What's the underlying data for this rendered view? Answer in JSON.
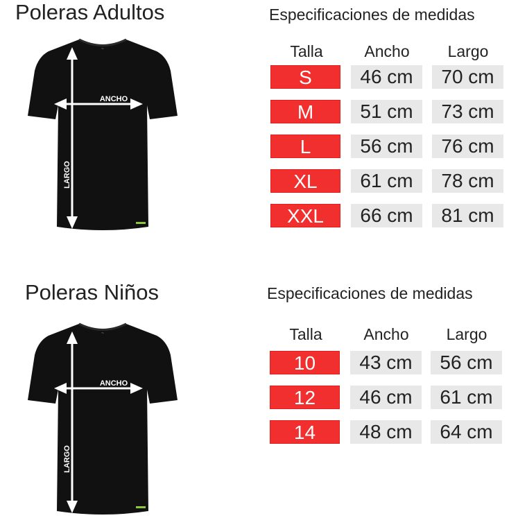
{
  "colors": {
    "size_bg": "#f22f2f",
    "value_bg": "#e8e8e8",
    "shirt": "#111111",
    "arrow": "#ffffff",
    "logo": "#8dc63f"
  },
  "adults": {
    "title": "Poleras  Adultos",
    "spec_title": "Especificaciones de medidas",
    "headers": [
      "Talla",
      "Ancho",
      "Largo"
    ],
    "shirt_labels": {
      "ancho": "ANCHO",
      "largo": "LARGO"
    },
    "rows": [
      {
        "talla": "S",
        "ancho": "46 cm",
        "largo": "70 cm"
      },
      {
        "talla": "M",
        "ancho": "51 cm",
        "largo": "73 cm"
      },
      {
        "talla": "L",
        "ancho": "56 cm",
        "largo": "76 cm"
      },
      {
        "talla": "XL",
        "ancho": "61 cm",
        "largo": "78 cm"
      },
      {
        "talla": "XXL",
        "ancho": "66 cm",
        "largo": "81 cm"
      }
    ]
  },
  "kids": {
    "title": "Poleras  Niños",
    "spec_title": "Especificaciones de medidas",
    "headers": [
      "Talla",
      "Ancho",
      "Largo"
    ],
    "shirt_labels": {
      "ancho": "ANCHO",
      "largo": "LARGO"
    },
    "rows": [
      {
        "talla": "10",
        "ancho": "43 cm",
        "largo": "56 cm"
      },
      {
        "talla": "12",
        "ancho": "46 cm",
        "largo": "61 cm"
      },
      {
        "talla": "14",
        "ancho": "48 cm",
        "largo": "64 cm"
      }
    ]
  }
}
